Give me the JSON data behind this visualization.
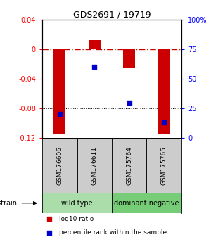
{
  "title": "GDS2691 / 19719",
  "samples": [
    "GSM176606",
    "GSM176611",
    "GSM175764",
    "GSM175765"
  ],
  "log10_ratio": [
    -0.115,
    0.013,
    -0.025,
    -0.115
  ],
  "percentile_rank": [
    20,
    60,
    30,
    13
  ],
  "ylim_left": [
    -0.12,
    0.04
  ],
  "ylim_right": [
    0,
    100
  ],
  "yticks_left": [
    -0.12,
    -0.08,
    -0.04,
    0,
    0.04
  ],
  "yticks_right": [
    0,
    25,
    50,
    75,
    100
  ],
  "ytick_labels_right": [
    "0",
    "25",
    "50",
    "75",
    "100%"
  ],
  "bar_color": "#cc0000",
  "dot_color": "#0000cc",
  "zero_line_color": "#cc0000",
  "dotted_line_color": "#000000",
  "groups": [
    {
      "label": "wild type",
      "samples": [
        0,
        1
      ],
      "color": "#aaddaa"
    },
    {
      "label": "dominant negative",
      "samples": [
        2,
        3
      ],
      "color": "#77cc77"
    }
  ],
  "strain_label": "strain",
  "legend_items": [
    {
      "color": "#cc0000",
      "label": "log10 ratio"
    },
    {
      "color": "#0000cc",
      "label": "percentile rank within the sample"
    }
  ],
  "bar_width": 0.35,
  "sample_box_color": "#cccccc",
  "fig_bg": "#ffffff"
}
